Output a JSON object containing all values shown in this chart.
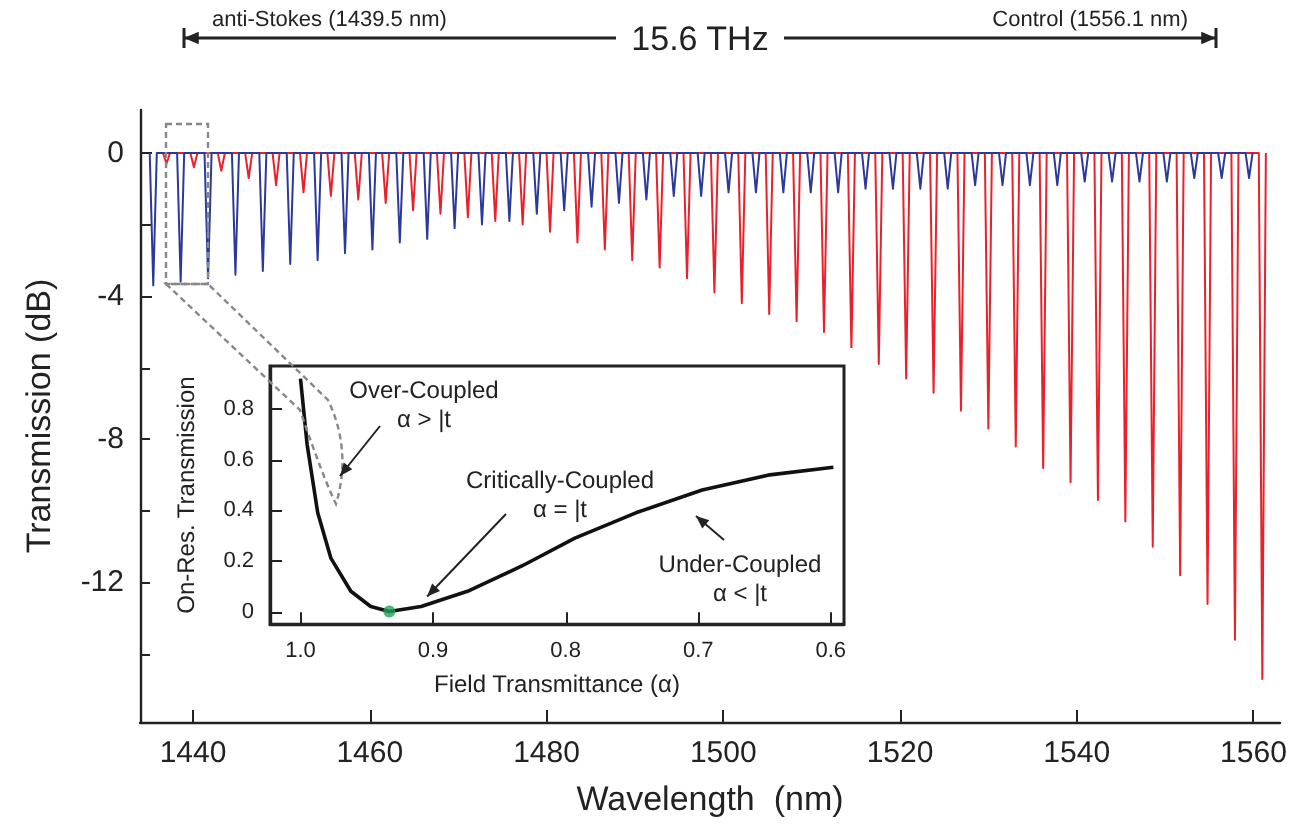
{
  "chart_data": [
    {
      "type": "line",
      "xlabel": "Wavelength  (nm)",
      "ylabel": "Transmission (dB)",
      "xlim": [
        1434,
        1563
      ],
      "ylim": [
        -15.9,
        1.2
      ],
      "xticks": [
        1440,
        1460,
        1480,
        1500,
        1520,
        1540,
        1560
      ],
      "yticks": [
        0,
        {
          "value": -2,
          "label": null
        },
        -4,
        {
          "value": -6,
          "label": null
        },
        -8,
        {
          "value": -10,
          "label": null
        },
        -12,
        {
          "value": -14,
          "label": null
        }
      ],
      "marker": "none",
      "annotations": [
        "15.6 THz",
        "anti-Stokes (1439.5 nm)",
        "Control (1556.1 nm)"
      ],
      "series": [
        {
          "color": "#e8222a",
          "x": [
            1436.6,
            1437,
            1437.4,
            1439.7,
            1440.1,
            1440.5,
            1442.8,
            1443.2,
            1443.6,
            1445.9,
            1446.3,
            1446.7,
            1449,
            1449.4,
            1449.8,
            1452.1,
            1452.5,
            1452.9,
            1455.2,
            1455.6,
            1456,
            1458.3,
            1458.7,
            1459.1,
            1461.4,
            1461.8,
            1462.2,
            1464.5,
            1464.9,
            1465.3,
            1467.6,
            1468,
            1468.4,
            1470.7,
            1471.1,
            1471.5,
            1473.8,
            1474.2,
            1474.6,
            1476.9,
            1477.3,
            1477.7,
            1480,
            1480.4,
            1480.8,
            1483.1,
            1483.5,
            1483.9,
            1486.2,
            1486.6,
            1487,
            1489.3,
            1489.7,
            1490.1,
            1492.4,
            1492.8,
            1493.2,
            1495.5,
            1495.9,
            1496.3,
            1498.6,
            1499,
            1499.4,
            1501.7,
            1502.1,
            1502.5,
            1504.8,
            1505.2,
            1505.6,
            1507.9,
            1508.3,
            1508.7,
            1511,
            1511.4,
            1511.8,
            1514.1,
            1514.5,
            1514.9,
            1517.2,
            1517.6,
            1518,
            1520.3,
            1520.7,
            1521.1,
            1523.4,
            1523.8,
            1524.2,
            1526.5,
            1526.9,
            1527.3,
            1529.6,
            1530,
            1530.4,
            1532.7,
            1533.1,
            1533.5,
            1535.8,
            1536.2,
            1536.6,
            1538.9,
            1539.3,
            1539.7,
            1542,
            1542.4,
            1542.8,
            1545.1,
            1545.5,
            1545.9,
            1548.2,
            1548.6,
            1549,
            1551.3,
            1551.7,
            1552.1,
            1554.4,
            1554.8,
            1555.2,
            1557.5,
            1557.9,
            1558.3,
            1560.6,
            1561,
            1561.4
          ],
          "values": [
            0,
            -0.3,
            0,
            0,
            -0.4,
            0,
            0,
            -0.5,
            0,
            0,
            -0.7,
            0,
            0,
            -0.9,
            0,
            0,
            -1.1,
            0,
            0,
            -1.2,
            0,
            0,
            -1.3,
            0,
            0,
            -1.4,
            0,
            0,
            -1.6,
            0,
            0,
            -1.7,
            0,
            0,
            -1.8,
            0,
            0,
            -1.9,
            0,
            0,
            -2.0,
            0,
            0,
            -2.2,
            0,
            0,
            -2.5,
            0,
            0,
            -2.7,
            0,
            0,
            -3.0,
            0,
            0,
            -3.2,
            0,
            0,
            -3.5,
            0,
            0,
            -3.9,
            0,
            0,
            -4.2,
            0,
            0,
            -4.5,
            0,
            0,
            -4.7,
            0,
            0,
            -5.0,
            0,
            0,
            -5.5,
            0,
            0,
            -5.9,
            0,
            0,
            -6.3,
            0,
            0,
            -6.7,
            0,
            0,
            -7.2,
            0,
            0,
            -7.7,
            0,
            0,
            -8.2,
            0,
            0,
            -8.8,
            0,
            0,
            -9.2,
            0,
            0,
            -9.7,
            0,
            0,
            -10.3,
            0,
            0,
            -11.0,
            0,
            0,
            -11.8,
            0,
            0,
            -12.6,
            0,
            0,
            -13.6,
            0,
            0,
            -14.7,
            0
          ]
        },
        {
          "color": "#2b3a9a",
          "x": [
            1435.1,
            1435.5,
            1435.9,
            1438.2,
            1438.6,
            1439,
            1441.3,
            1441.7,
            1442.1,
            1444.4,
            1444.8,
            1445.2,
            1447.5,
            1447.9,
            1448.3,
            1450.6,
            1451,
            1451.4,
            1453.7,
            1454.1,
            1454.5,
            1456.8,
            1457.2,
            1457.6,
            1459.9,
            1460.3,
            1460.7,
            1463,
            1463.4,
            1463.8,
            1466.1,
            1466.5,
            1466.9,
            1469.2,
            1469.6,
            1470,
            1472.3,
            1472.7,
            1473.1,
            1475.4,
            1475.8,
            1476.2,
            1478.5,
            1478.9,
            1479.3,
            1481.6,
            1482,
            1482.4,
            1484.7,
            1485.1,
            1485.5,
            1487.8,
            1488.2,
            1488.6,
            1490.9,
            1491.3,
            1491.7,
            1494,
            1494.4,
            1494.8,
            1497.1,
            1497.5,
            1497.9,
            1500.2,
            1500.6,
            1501,
            1503.3,
            1503.7,
            1504.1,
            1506.4,
            1506.8,
            1507.2,
            1509.5,
            1509.9,
            1510.3,
            1512.6,
            1513,
            1513.4,
            1515.7,
            1516.1,
            1516.5,
            1518.8,
            1519.2,
            1519.6,
            1521.9,
            1522.3,
            1522.7,
            1525,
            1525.4,
            1525.8,
            1528.1,
            1528.5,
            1528.9,
            1531.2,
            1531.6,
            1532,
            1534.3,
            1534.7,
            1535.1,
            1537.4,
            1537.8,
            1538.2,
            1540.5,
            1540.9,
            1541.3,
            1543.6,
            1544,
            1544.4,
            1546.7,
            1547.1,
            1547.5,
            1549.8,
            1550.2,
            1550.6,
            1552.9,
            1553.3,
            1553.7,
            1556,
            1556.4,
            1556.8,
            1559.1,
            1559.5,
            1559.9
          ],
          "values": [
            0,
            -3.7,
            0,
            0,
            -3.6,
            0,
            0,
            -3.5,
            0,
            0,
            -3.4,
            0,
            0,
            -3.3,
            0,
            0,
            -3.1,
            0,
            0,
            -3.0,
            0,
            0,
            -2.8,
            0,
            0,
            -2.7,
            0,
            0,
            -2.5,
            0,
            0,
            -2.4,
            0,
            0,
            -2.1,
            0,
            0,
            -2.0,
            0,
            0,
            -1.9,
            0,
            0,
            -1.7,
            0,
            0,
            -1.6,
            0,
            0,
            -1.5,
            0,
            0,
            -1.4,
            0,
            0,
            -1.3,
            0,
            0,
            -1.2,
            0,
            0,
            -1.2,
            0,
            0,
            -1.1,
            0,
            0,
            -1.1,
            0,
            0,
            -1.1,
            0,
            0,
            -1.1,
            0,
            0,
            -1.1,
            0,
            0,
            -1.0,
            0,
            0,
            -1.0,
            0,
            0,
            -1.0,
            0,
            0,
            -1.0,
            0,
            0,
            -0.9,
            0,
            0,
            -0.9,
            0,
            0,
            -0.9,
            0,
            0,
            -0.9,
            0,
            0,
            -0.8,
            0,
            0,
            -0.8,
            0,
            0,
            -0.8,
            0,
            0,
            -0.8,
            0,
            0,
            -0.7,
            0,
            0,
            -0.7,
            0,
            0,
            -0.7,
            0
          ]
        }
      ]
    },
    {
      "type": "line",
      "xlabel": "Field Transmittance (α)",
      "ylabel": "On-Res. Transmission",
      "xlim": [
        1.023,
        0.59
      ],
      "ylim": [
        -0.05,
        0.97
      ],
      "xticks": [
        {
          "value": 1,
          "label": "1.0"
        },
        0.9,
        0.8,
        0.7,
        0.6
      ],
      "yticks": [
        0,
        0.2,
        0.4,
        0.6,
        0.8
      ],
      "annotations": [
        "Over-Coupled\nα > |t",
        {
          "text": "Critically-Coupled\nα = |t",
          "x": 0.909,
          "y": 0.02
        },
        "Under-Coupled\nα < |t"
      ],
      "series": [
        {
          "color": "#111111",
          "x": [
            1.0,
            0.995,
            0.987,
            0.977,
            0.962,
            0.947,
            0.933,
            0.909,
            0.874,
            0.833,
            0.793,
            0.747,
            0.697,
            0.646,
            0.598
          ],
          "values": [
            0.92,
            0.66,
            0.39,
            0.21,
            0.08,
            0.02,
            0.0,
            0.02,
            0.08,
            0.18,
            0.29,
            0.39,
            0.48,
            0.54,
            0.57
          ]
        },
        {
          "type": "scatter",
          "color": "#1fa35a",
          "x": [
            0.933
          ],
          "values": [
            0.0
          ]
        }
      ]
    }
  ]
}
